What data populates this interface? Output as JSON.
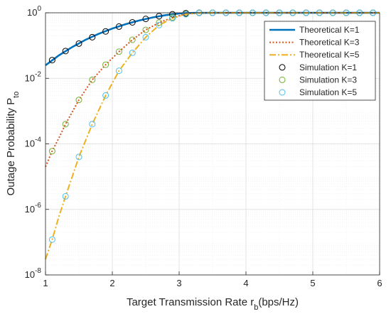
{
  "chart_data": {
    "type": "line",
    "title": "",
    "xlabel": "Target Transmission Rate r",
    "xlabel_sub": "b",
    "xlabel_tail": "(bps/Hz)",
    "ylabel": "Outage Probability P",
    "ylabel_sub": "to",
    "x_scale": "linear",
    "y_scale": "log",
    "xlim": [
      1,
      6
    ],
    "ylim": [
      1e-08,
      1
    ],
    "x_ticks": [
      1,
      2,
      3,
      4,
      5,
      6
    ],
    "x_tick_labels": [
      "1",
      "2",
      "3",
      "4",
      "5",
      "6"
    ],
    "y_ticks": [
      1e-08,
      1e-06,
      0.0001,
      0.01,
      1
    ],
    "y_tick_labels": [
      {
        "base": "10",
        "exp": "-8"
      },
      {
        "base": "10",
        "exp": "-6"
      },
      {
        "base": "10",
        "exp": "-4"
      },
      {
        "base": "10",
        "exp": "-2"
      },
      {
        "base": "10",
        "exp": "0"
      }
    ],
    "grid": true,
    "minor_grid": true,
    "legend_position": "top-right",
    "series": [
      {
        "name": "Theoretical K=1",
        "kind": "line",
        "color": "#0072BD",
        "style": "solid",
        "x": [
          1.0,
          1.2,
          1.4,
          1.6,
          1.8,
          2.0,
          2.2,
          2.4,
          2.6,
          2.8,
          3.0,
          3.2,
          3.5,
          4.0,
          5.0,
          6.0
        ],
        "y": [
          0.025,
          0.05,
          0.09,
          0.15,
          0.23,
          0.33,
          0.45,
          0.58,
          0.72,
          0.85,
          0.95,
          0.99,
          1.0,
          1.0,
          1.0,
          1.0
        ]
      },
      {
        "name": "Theoretical K=3",
        "kind": "line",
        "color": "#D95319",
        "style": "dotted",
        "x": [
          1.0,
          1.1,
          1.2,
          1.3,
          1.5,
          1.7,
          1.9,
          2.1,
          2.3,
          2.5,
          2.7,
          2.9,
          3.1,
          3.3,
          3.5,
          4.0,
          5.0,
          6.0
        ],
        "y": [
          2e-05,
          6e-05,
          0.00015,
          0.0004,
          0.0022,
          0.009,
          0.026,
          0.065,
          0.15,
          0.3,
          0.5,
          0.72,
          0.92,
          0.99,
          1.0,
          1.0,
          1.0,
          1.0
        ]
      },
      {
        "name": "Theoretical K=5",
        "kind": "line",
        "color": "#EDB120",
        "style": "dashdot",
        "x": [
          1.0,
          1.1,
          1.2,
          1.3,
          1.5,
          1.7,
          1.9,
          2.1,
          2.3,
          2.5,
          2.7,
          2.9,
          3.1,
          3.3,
          3.5,
          4.0,
          5.0,
          6.0
        ],
        "y": [
          3e-08,
          1.2e-07,
          6e-07,
          2.5e-06,
          4e-05,
          0.0004,
          0.003,
          0.017,
          0.06,
          0.18,
          0.42,
          0.68,
          0.9,
          0.99,
          1.0,
          1.0,
          1.0,
          1.0
        ]
      },
      {
        "name": "Simulation K=1",
        "kind": "marker",
        "color": "#000000",
        "x": [
          1.1,
          1.3,
          1.5,
          1.7,
          1.9,
          2.1,
          2.3,
          2.5,
          2.7,
          2.9,
          3.1,
          3.3,
          3.5,
          3.7,
          3.9,
          4.1,
          4.3,
          4.5,
          4.7,
          4.9,
          5.1,
          5.3,
          5.5,
          5.7,
          5.9
        ],
        "y": [
          0.036,
          0.068,
          0.115,
          0.18,
          0.27,
          0.38,
          0.51,
          0.65,
          0.79,
          0.9,
          0.97,
          1.0,
          1.0,
          1.0,
          1.0,
          1.0,
          1.0,
          1.0,
          1.0,
          1.0,
          1.0,
          1.0,
          1.0,
          1.0,
          1.0
        ]
      },
      {
        "name": "Simulation K=3",
        "kind": "marker",
        "color": "#77AC30",
        "x": [
          1.1,
          1.3,
          1.5,
          1.7,
          1.9,
          2.1,
          2.3,
          2.5,
          2.7,
          2.9,
          3.1,
          3.3,
          3.5,
          3.7,
          3.9,
          4.1,
          4.3,
          4.5,
          4.7,
          4.9,
          5.1,
          5.3,
          5.5,
          5.7,
          5.9
        ],
        "y": [
          6e-05,
          0.0004,
          0.0022,
          0.009,
          0.026,
          0.065,
          0.15,
          0.3,
          0.5,
          0.72,
          0.92,
          0.99,
          1.0,
          1.0,
          1.0,
          1.0,
          1.0,
          1.0,
          1.0,
          1.0,
          1.0,
          1.0,
          1.0,
          1.0,
          1.0
        ]
      },
      {
        "name": "Simulation K=5",
        "kind": "marker",
        "color": "#4DBEEE",
        "x": [
          1.1,
          1.3,
          1.5,
          1.7,
          1.9,
          2.1,
          2.3,
          2.5,
          2.7,
          2.9,
          3.1,
          3.3,
          3.5,
          3.7,
          3.9,
          4.1,
          4.3,
          4.5,
          4.7,
          4.9,
          5.1,
          5.3,
          5.5,
          5.7,
          5.9
        ],
        "y": [
          1.2e-07,
          2.5e-06,
          4e-05,
          0.0004,
          0.003,
          0.017,
          0.06,
          0.18,
          0.42,
          0.68,
          0.9,
          0.99,
          1.0,
          1.0,
          1.0,
          1.0,
          1.0,
          1.0,
          1.0,
          1.0,
          1.0,
          1.0,
          1.0,
          1.0,
          1.0
        ]
      }
    ]
  }
}
